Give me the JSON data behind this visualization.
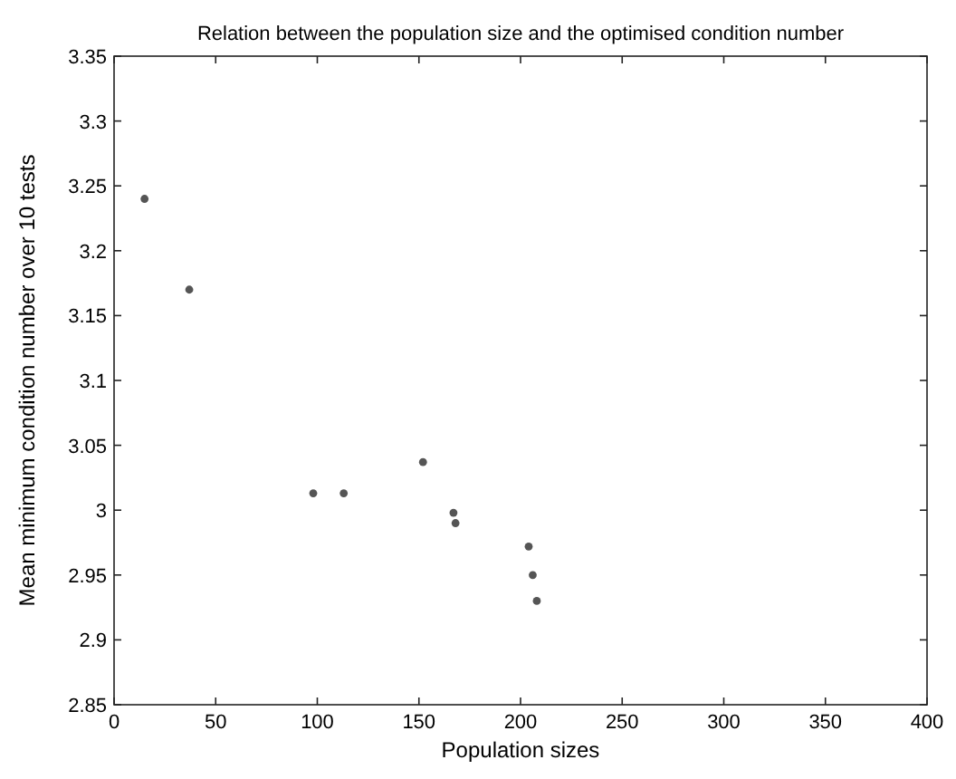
{
  "chart_data": {
    "type": "scatter",
    "title": "Relation between the population size and the optimised condition number",
    "xlabel": "Population sizes",
    "ylabel": "Mean minimum condition number over 10 tests",
    "x": [
      15,
      37,
      98,
      113,
      152,
      167,
      168,
      204,
      206,
      208
    ],
    "values": [
      3.24,
      3.17,
      3.013,
      3.013,
      3.037,
      2.998,
      2.99,
      2.972,
      2.95,
      2.93
    ],
    "color": "#555555",
    "marker": "circle",
    "xlim": [
      0,
      400
    ],
    "xticks": [
      0,
      50,
      100,
      150,
      200,
      250,
      300,
      350,
      400
    ],
    "ylim": [
      2.85,
      3.35
    ],
    "yticks": [
      2.85,
      2.9,
      2.95,
      3,
      3.05,
      3.1,
      3.15,
      3.2,
      3.25,
      3.3,
      3.35
    ],
    "grid": false
  }
}
